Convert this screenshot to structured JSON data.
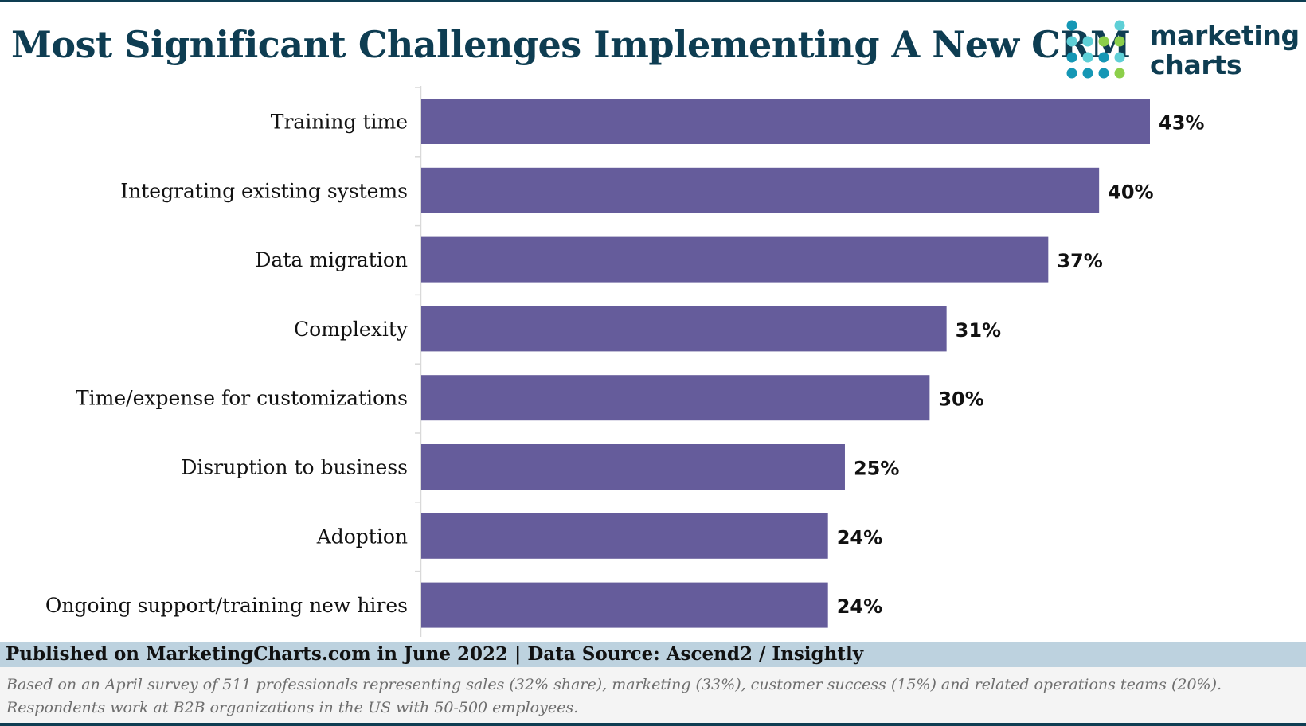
{
  "header": {
    "title": "Most Significant Challenges Implementing A New CRM",
    "logo": {
      "line1": "marketing",
      "line2": "charts",
      "name": "marketing-charts-logo"
    }
  },
  "chart_data": {
    "type": "bar",
    "orientation": "horizontal",
    "title": "Most Significant Challenges Implementing A New CRM",
    "categories": [
      "Training time",
      "Integrating existing systems",
      "Data migration",
      "Complexity",
      "Time/expense for customizations",
      "Disruption to business",
      "Adoption",
      "Ongoing support/training new hires"
    ],
    "values": [
      43,
      40,
      37,
      31,
      30,
      25,
      24,
      24
    ],
    "value_labels": [
      "43%",
      "40%",
      "37%",
      "31%",
      "30%",
      "25%",
      "24%",
      "24%"
    ],
    "xlim": [
      0,
      43
    ],
    "grid": false,
    "bar_color": "#655c9b"
  },
  "footer": {
    "published": "Published on MarketingCharts.com in June 2022 | Data Source: Ascend2 / Insightly",
    "note_line1": "Based on an April survey of 511 professionals representing sales (32% share), marketing (33%), customer success (15%) and related operations teams (20%).",
    "note_line2": "Respondents work at B2B organizations in the US with 50-500 employees."
  },
  "colors": {
    "title": "#0e3d52",
    "bar": "#655c9b",
    "publish_band": "#bdd2df",
    "note_band": "#f4f4f4",
    "logo_dots": [
      "#1597b5",
      "#5ecfd6",
      "#8ccf4a"
    ]
  }
}
